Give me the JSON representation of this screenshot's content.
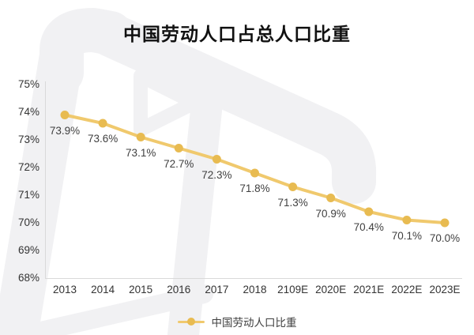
{
  "title": "中国劳动人口占总人口比重",
  "legend": {
    "label": "中国劳动人口比重"
  },
  "colors": {
    "line": "#F0C96D",
    "dot": "#E8BB51",
    "axis": "#d9d9d9",
    "tick_text": "#333333",
    "data_label_text": "#404040",
    "title_text": "#111111",
    "watermark": "#f1f1f3"
  },
  "chart_data": {
    "type": "line",
    "title": "中国劳动人口占总人口比重",
    "series_name": "中国劳动人口比重",
    "categories": [
      "2013",
      "2014",
      "2015",
      "2016",
      "2017",
      "2018",
      "2109E",
      "2020E",
      "2021E",
      "2022E",
      "2023E"
    ],
    "values": [
      73.9,
      73.6,
      73.1,
      72.7,
      72.3,
      71.8,
      71.3,
      70.9,
      70.4,
      70.1,
      70.0
    ],
    "point_labels": [
      "73.9%",
      "73.6%",
      "73.1%",
      "72.7%",
      "72.3%",
      "71.8%",
      "71.3%",
      "70.9%",
      "70.4%",
      "70.1%",
      "70.0%"
    ],
    "y_tick_labels": [
      "75%",
      "74%",
      "73%",
      "72%",
      "71%",
      "70%",
      "69%",
      "68%"
    ],
    "ylim": [
      68,
      75
    ],
    "xlabel": "",
    "ylabel": "",
    "grid": false,
    "legend_position": "bottom"
  }
}
